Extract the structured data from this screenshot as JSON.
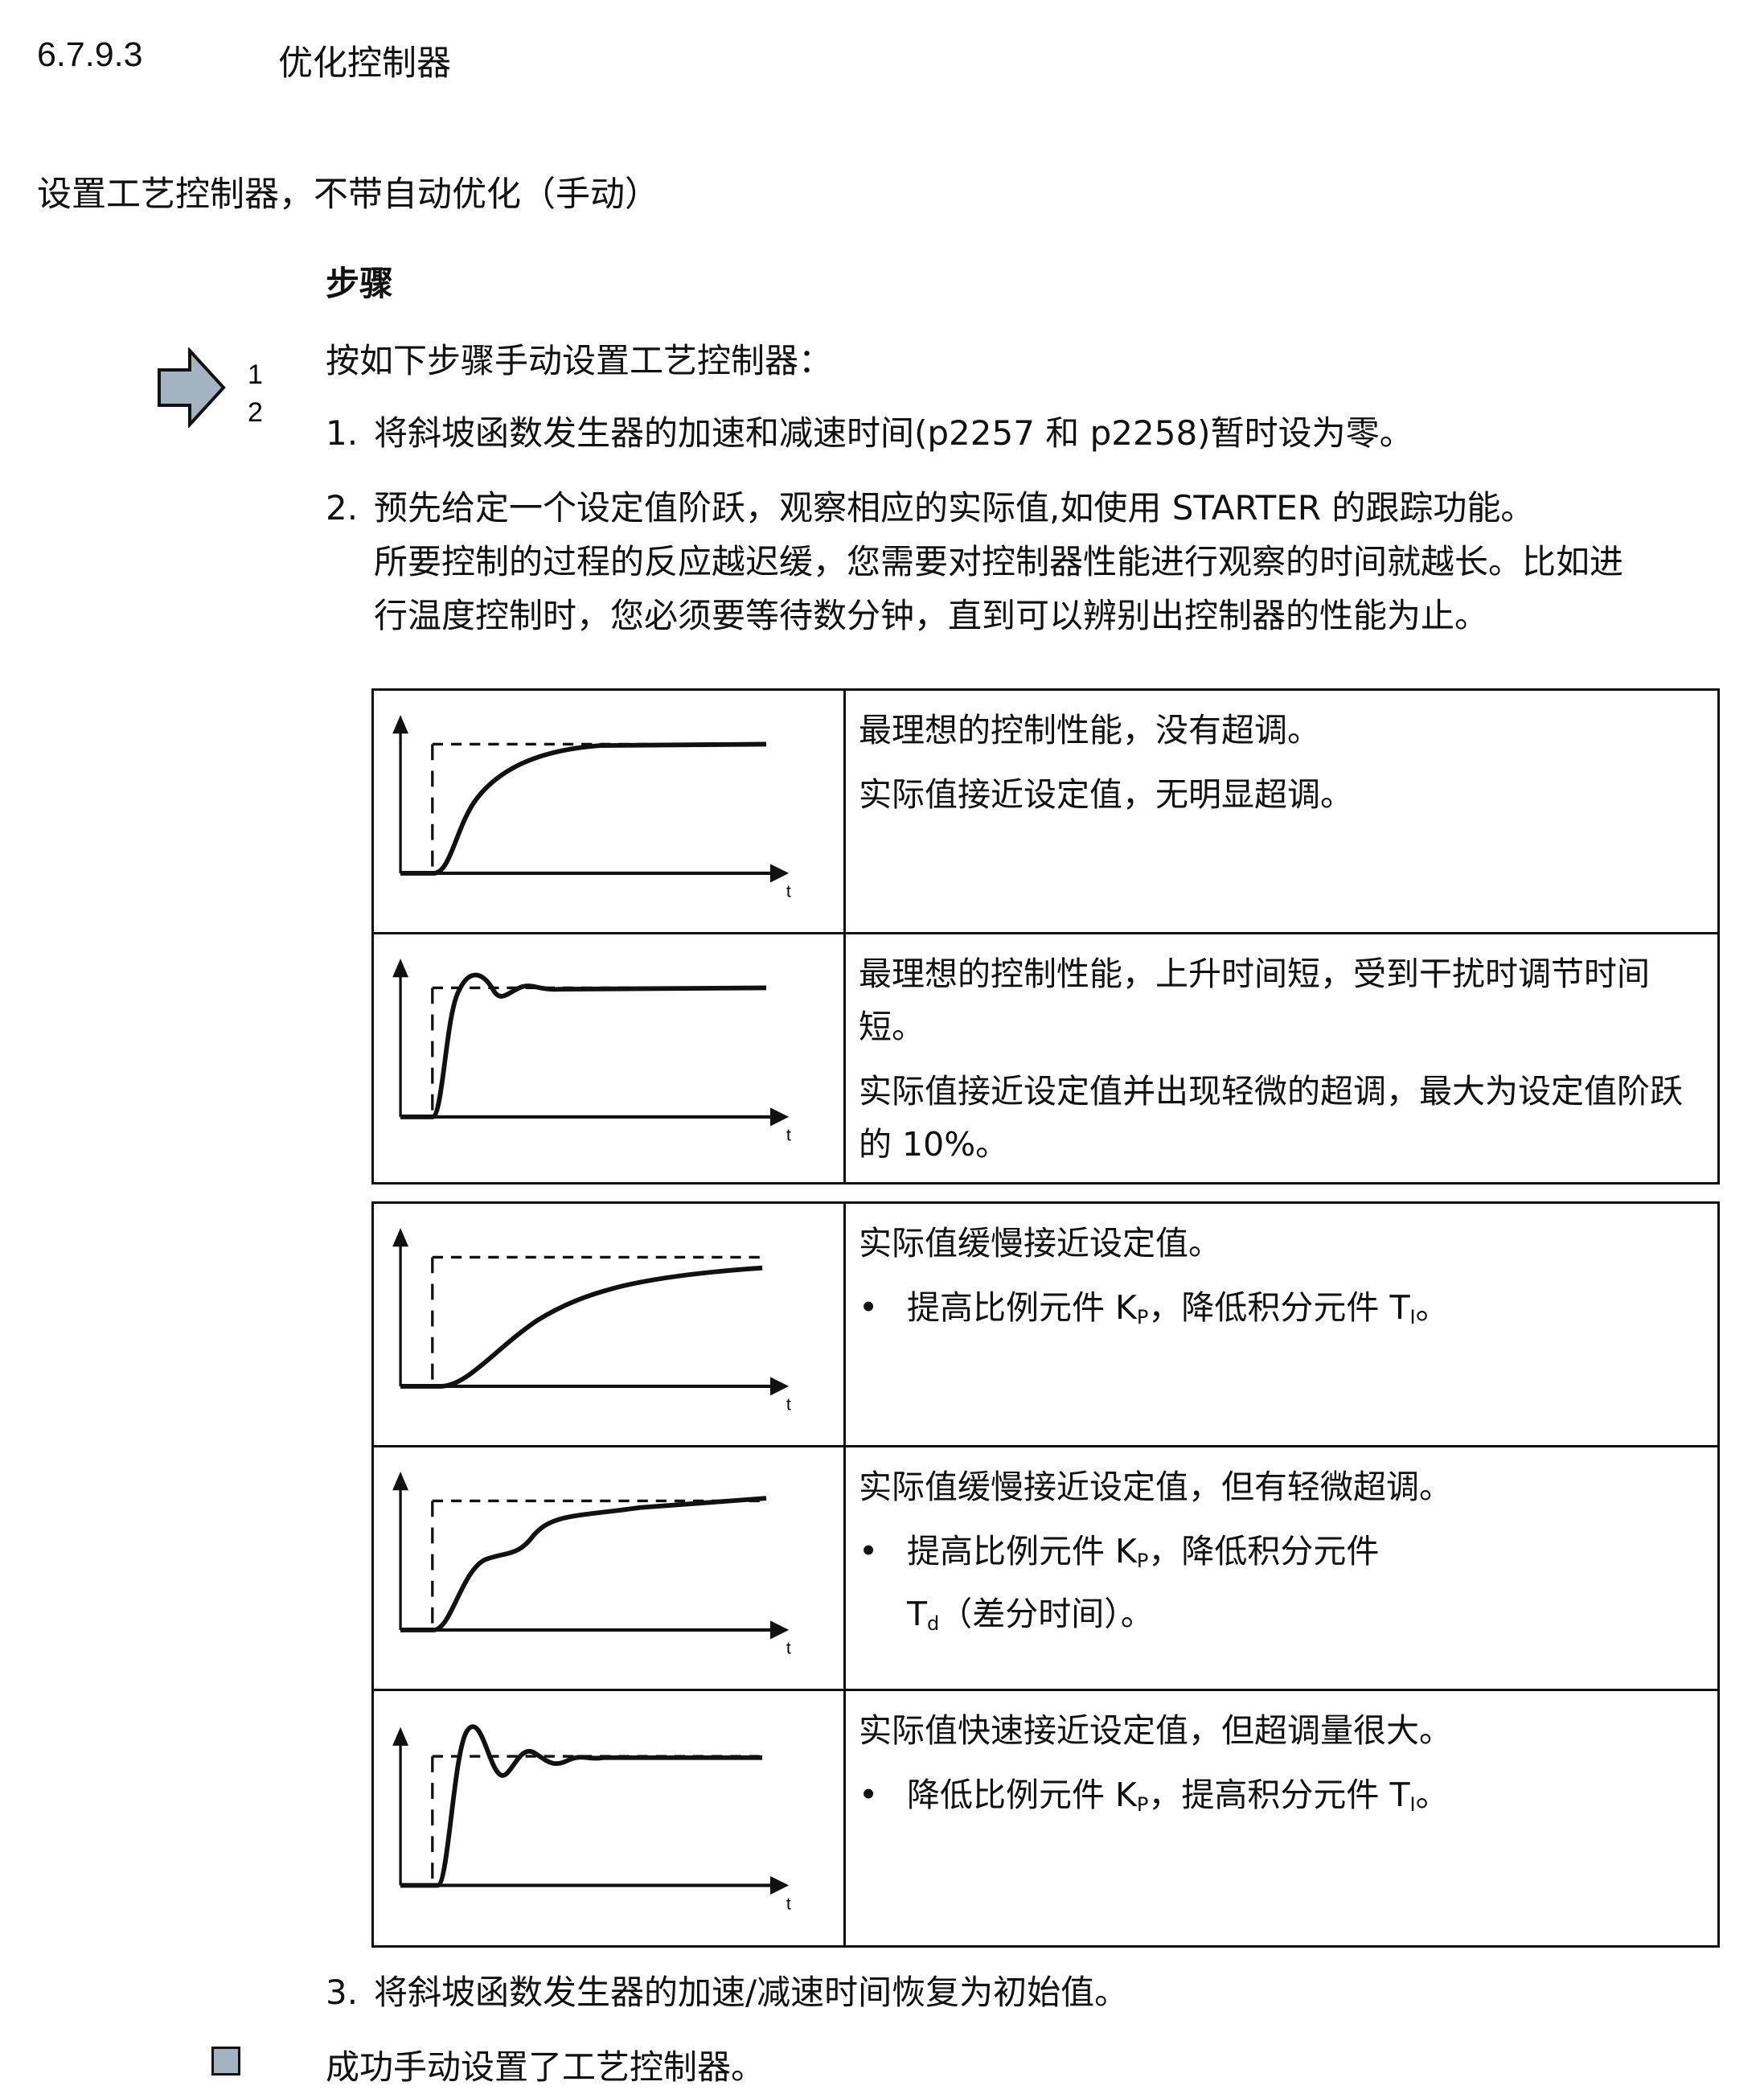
{
  "section": {
    "number": "6.7.9.3",
    "title": "优化控制器"
  },
  "subtitle": "设置工艺控制器，不带自动优化（手动）",
  "procedure": {
    "heading": "步骤",
    "icon": "steps-arrow-icon",
    "icon_numbers": [
      "1",
      "2"
    ],
    "intro": "按如下步骤手动设置工艺控制器：",
    "steps": [
      {
        "num": "1.",
        "lines": [
          "将斜坡函数发生器的加速和减速时间(p2257 和 p2258)暂时设为零。"
        ]
      },
      {
        "num": "2.",
        "lines": [
          "预先给定一个设定值阶跃，观察相应的实际值,如使用 STARTER 的跟踪功能。",
          "所要控制的过程的反应越迟缓，您需要对控制器性能进行观察的时间就越长。比如进",
          "行温度控制时，您必须要等待数分钟，直到可以辨别出控制器的性能为止。"
        ]
      },
      {
        "num": "3.",
        "lines": [
          "将斜坡函数发生器的加速/减速时间恢复为初始值。"
        ]
      }
    ],
    "result": "成功手动设置了工艺控制器。",
    "result_icon": "result-square-icon"
  },
  "axis_label": "t",
  "table1": [
    {
      "response": "ideal-no-overshoot",
      "paras": [
        "最理想的控制性能，没有超调。",
        "实际值接近设定值，无明显超调。"
      ]
    },
    {
      "response": "ideal-slight-overshoot",
      "paras": [
        "最理想的控制性能，上升时间短，受到干扰时调节时间短。",
        "实际值接近设定值并出现轻微的超调，最大为设定值阶跃的 10%。"
      ]
    }
  ],
  "table2": [
    {
      "response": "slow",
      "title": "实际值缓慢接近设定值。",
      "bullet": {
        "a": "提高比例元件 K",
        "a_sub": "P",
        "b": "，降低积分元件 T",
        "b_sub": "I",
        "c": "。"
      }
    },
    {
      "response": "slow-slight-overshoot",
      "title": "实际值缓慢接近设定值，但有轻微超调。",
      "bullet": {
        "a": "提高比例元件 K",
        "a_sub": "P",
        "b": "，降低积分元件",
        "b_line2": "T",
        "b_sub": "d",
        "c": "（差分时间）。"
      }
    },
    {
      "response": "fast-large-overshoot",
      "title": "实际值快速接近设定值，但超调量很大。",
      "bullet": {
        "a": "降低比例元件 K",
        "a_sub": "P",
        "b": "，提高积分元件 T",
        "b_sub": "I",
        "c": "。"
      }
    }
  ]
}
